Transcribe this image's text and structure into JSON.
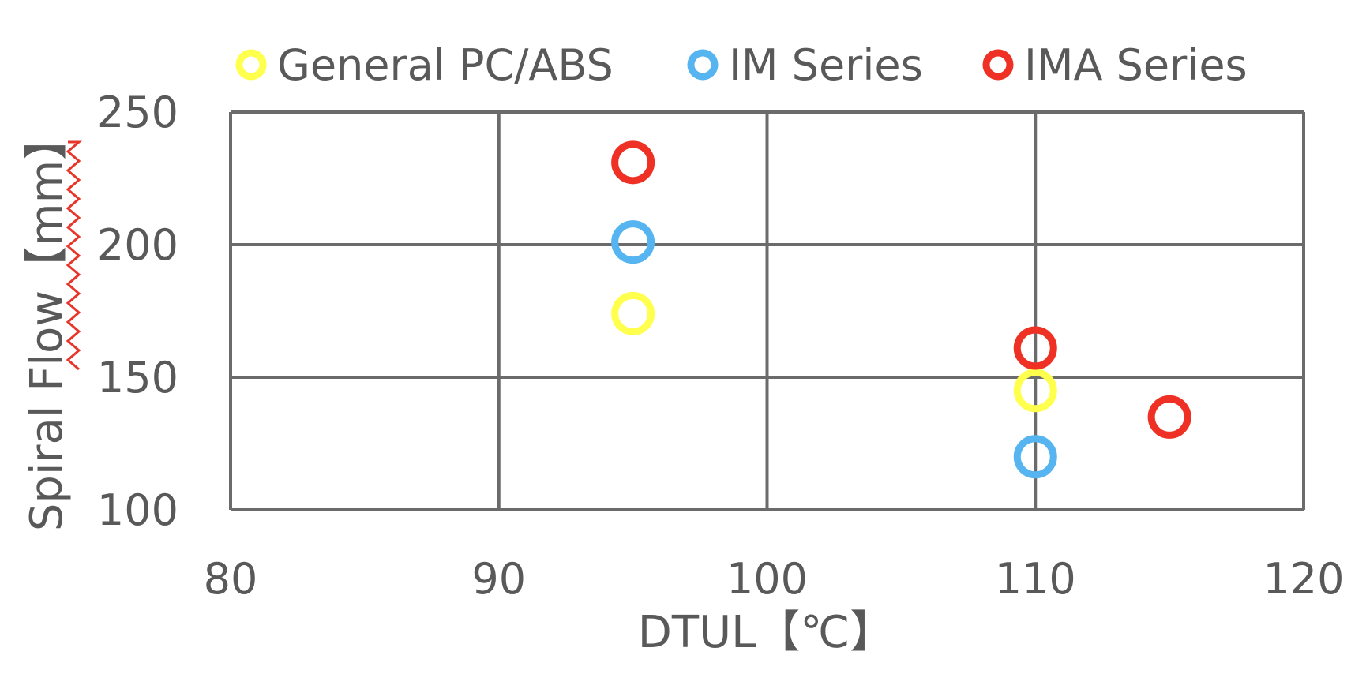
{
  "chart_data": {
    "type": "scatter",
    "title": "",
    "xlabel": "DTUL【℃】",
    "ylabel": "Spiral Flow【mm】",
    "xlim": [
      80,
      120
    ],
    "ylim": [
      100,
      250
    ],
    "xticks": [
      80,
      90,
      100,
      110,
      120
    ],
    "yticks": [
      100,
      150,
      200,
      250
    ],
    "xtick_labels": [
      "80",
      "90",
      "100",
      "110",
      "120"
    ],
    "ytick_labels": [
      "100",
      "150",
      "200",
      "250"
    ],
    "grid": true,
    "legend_position": "top",
    "marker": "hollow-circle",
    "series": [
      {
        "name": "General PC/ABS",
        "color": "#FFFF4D",
        "points": [
          {
            "x": 95,
            "y": 174
          },
          {
            "x": 110,
            "y": 145
          }
        ]
      },
      {
        "name": "IM Series",
        "color": "#56B4F0",
        "points": [
          {
            "x": 95,
            "y": 201
          },
          {
            "x": 110,
            "y": 120
          }
        ]
      },
      {
        "name": "IMA Series",
        "color": "#EE3124",
        "points": [
          {
            "x": 95,
            "y": 231
          },
          {
            "x": 110,
            "y": 161
          },
          {
            "x": 115,
            "y": 135
          }
        ]
      }
    ]
  },
  "colors": {
    "axis": "#6B6B6B",
    "text": "#595959",
    "squiggle": "#E8352A"
  }
}
